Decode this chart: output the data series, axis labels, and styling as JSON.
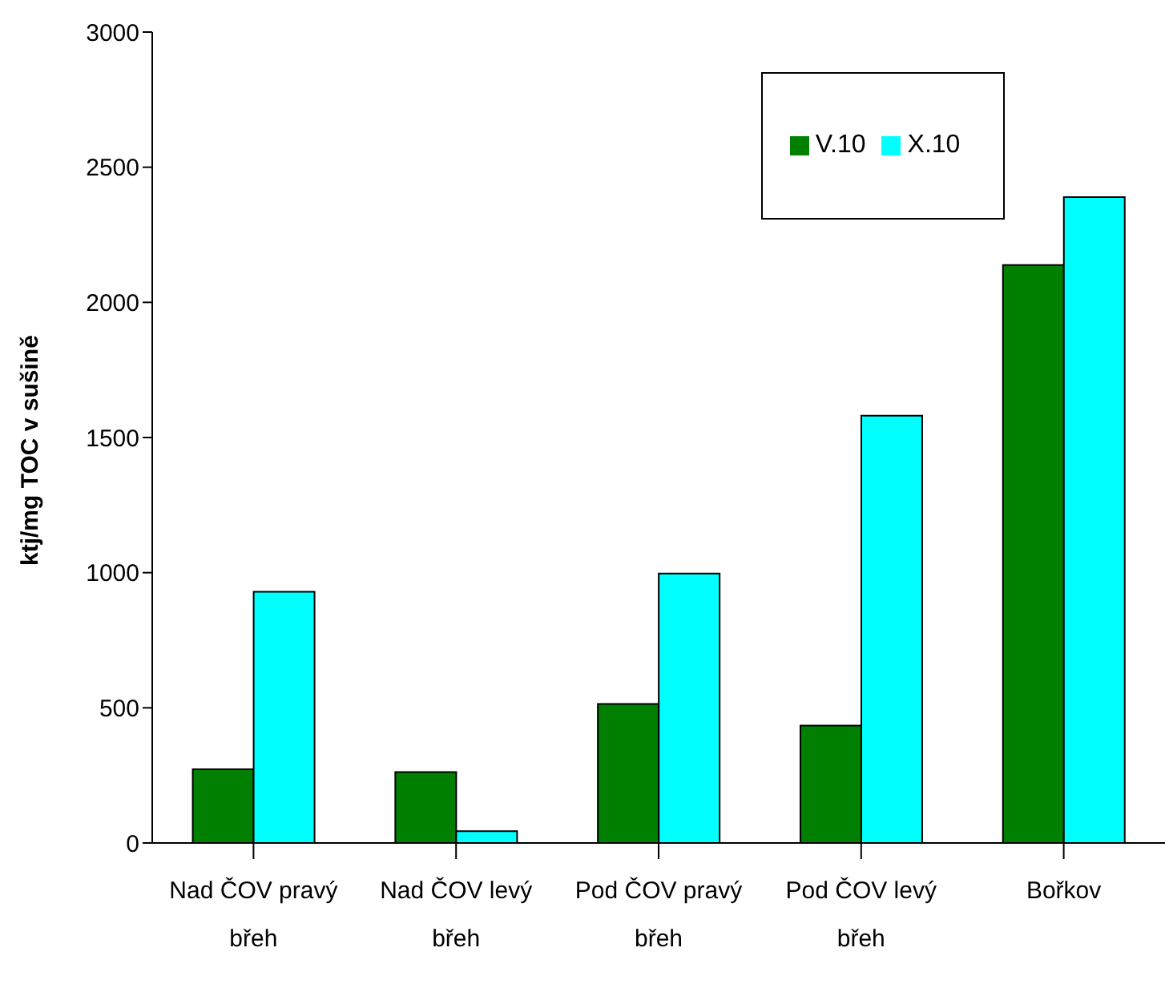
{
  "chart_data": {
    "type": "bar",
    "ylabel": "ktj/mg TOC v sušině",
    "categories": [
      "Nad ČOV pravý břeh",
      "Nad ČOV levý břeh",
      "Pod ČOV pravý břeh",
      "Pod ČOV levý břeh",
      "Bořkov"
    ],
    "series": [
      {
        "name": "V.10",
        "color": "#007f00",
        "values": [
          273,
          262,
          514,
          434,
          2138
        ]
      },
      {
        "name": "X.10",
        "color": "#00ffff",
        "values": [
          929,
          44,
          997,
          1581,
          2389
        ]
      }
    ],
    "ylim": [
      0,
      3000
    ],
    "yticks": [
      0,
      500,
      1000,
      1500,
      2000,
      2500,
      3000
    ],
    "grid": false,
    "legend": "top right"
  }
}
